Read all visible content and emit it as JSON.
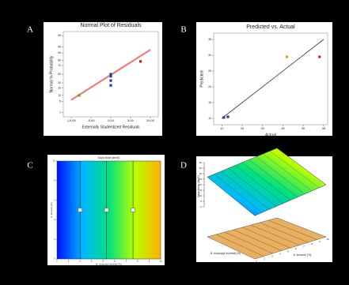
{
  "chart_data": [
    {
      "panel": "A",
      "type": "scatter",
      "title": "Normal Plot of Residuals",
      "x_label": "Externally Studentized Residuals",
      "y_label": "Normal % Probability",
      "x": [
        -8,
        0,
        0,
        0,
        0,
        7.5
      ],
      "values": [
        10,
        25,
        35,
        45,
        50,
        78
      ],
      "point_colors": [
        "#7a9a30",
        "#2a3a9a",
        "#2a3a9a",
        "#2a3a9a",
        "#2a3a9a",
        "#b02020"
      ],
      "fit_line": {
        "x": [
          -10,
          10
        ],
        "y": [
          6,
          93
        ],
        "color": "#ec7f78"
      },
      "xlim": [
        -12,
        12
      ],
      "xticks": [
        {
          "value": -10,
          "label": "-10.00"
        },
        {
          "value": -5,
          "label": "-5.00"
        },
        {
          "value": 0,
          "label": "0.00"
        },
        {
          "value": 5,
          "label": "5.00"
        },
        {
          "value": 10,
          "label": "10.00"
        }
      ],
      "ylim": [
        0.5,
        99.5
      ],
      "yticks": [
        1,
        5,
        10,
        20,
        30,
        50,
        70,
        80,
        90,
        95,
        99
      ],
      "yscale": "probit"
    },
    {
      "panel": "B",
      "type": "scatter",
      "title": "Predicted vs. Actual",
      "x_label": "Actual",
      "y_label": "Predicted",
      "x": [
        10.5,
        11.5,
        26,
        34
      ],
      "values": [
        10.3,
        10.5,
        29.5,
        29.5
      ],
      "point_colors": [
        "#2a3a9a",
        "#2a3a9a",
        "#e0a020",
        "#c03020"
      ],
      "fit_line": {
        "x": [
          10,
          35
        ],
        "y": [
          10,
          35
        ],
        "color": "#333333"
      },
      "xlim": [
        8,
        36
      ],
      "xticks": [
        10,
        15,
        20,
        25,
        30,
        35
      ],
      "ylim": [
        8,
        37
      ],
      "yticks": [
        10,
        15,
        20,
        25,
        30,
        35
      ]
    },
    {
      "panel": "C",
      "type": "contour",
      "title": "Days Most (devS)",
      "x_label": "B: isopropyl myristat (%)",
      "y_label": "A: benzoin (%)",
      "xlim": [
        1,
        10
      ],
      "xticks": [
        1,
        2,
        3,
        4,
        5,
        6,
        7,
        8,
        9,
        10
      ],
      "ylim": [
        0,
        10
      ],
      "yticks": [
        0,
        2,
        4,
        6,
        8,
        10
      ],
      "contours": [
        3,
        5.3,
        7.6
      ],
      "x": [
        3,
        5.3,
        7.6
      ],
      "values": [
        5,
        5,
        5
      ],
      "colormap": [
        "#0010ff",
        "#00b8ff",
        "#00e080",
        "#b8ff00",
        "#ffb000"
      ]
    },
    {
      "panel": "D",
      "type": "surface",
      "z_label": "Days Most (devS)",
      "x_label": "A: benzoin (%)",
      "y_label": "B: isopropyl myristat (%)",
      "zlim": [
        0,
        40
      ],
      "zticks": [
        0,
        5,
        10,
        15,
        20,
        25,
        30,
        35,
        40
      ],
      "xlim": [
        1,
        10
      ],
      "xticks": [
        1,
        2,
        3,
        4,
        5,
        6,
        7,
        8,
        9,
        10
      ],
      "corners": [
        27,
        36,
        20,
        12
      ],
      "colormap": [
        "#0010ff",
        "#00b8ff",
        "#00e080",
        "#b8ff00",
        "#ffb000"
      ]
    }
  ]
}
